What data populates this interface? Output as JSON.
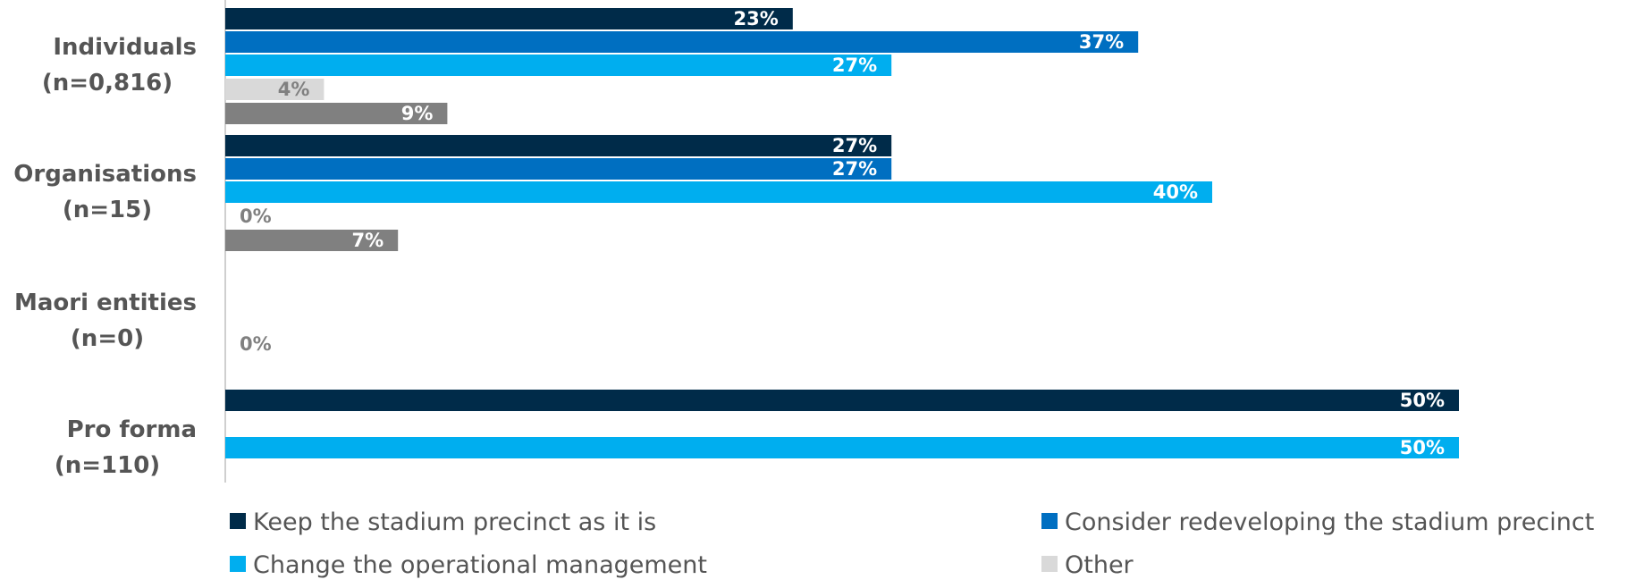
{
  "chart_data": {
    "type": "bar",
    "orientation": "horizontal",
    "categories": [
      [
        "Individuals",
        "(n=0,816)"
      ],
      [
        "Organisations",
        "(n=15)"
      ],
      [
        "Maori entities",
        "(n=0)"
      ],
      [
        "Pro forma",
        "(n=110)"
      ]
    ],
    "series": [
      {
        "name": "Keep the stadium precinct as it is",
        "color": "#002b49",
        "values": [
          23,
          27,
          null,
          50
        ]
      },
      {
        "name": "Consider redeveloping the stadium precinct",
        "color": "#006fc1",
        "values": [
          37,
          27,
          null,
          null
        ]
      },
      {
        "name": "Change the operational management",
        "color": "#00aeef",
        "values": [
          27,
          40,
          null,
          50
        ]
      },
      {
        "name": "Other",
        "color": "#d9d9d9",
        "values": [
          4,
          0,
          0,
          null
        ]
      },
      {
        "name": "",
        "color": "#808080",
        "values": [
          9,
          7,
          null,
          null
        ]
      }
    ],
    "unit": "%",
    "xlim": [
      0,
      50
    ],
    "grid": false,
    "legend_position": "bottom"
  }
}
